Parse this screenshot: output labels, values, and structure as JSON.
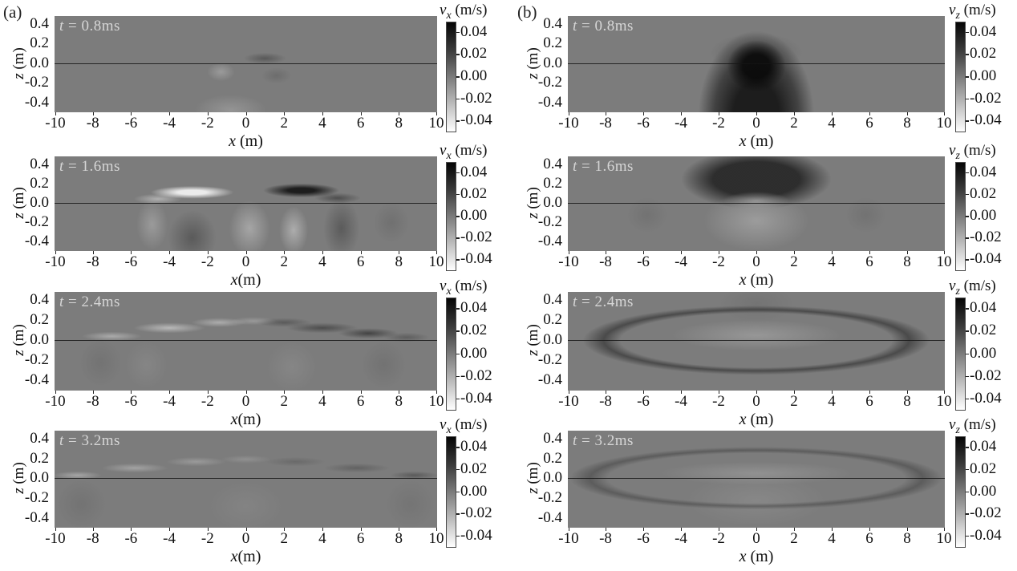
{
  "figure": {
    "panel_a_letter": "(a)",
    "panel_b_letter": "(b)",
    "background_gray": "#7c7c7c",
    "time_label_color": "#d6d6d6"
  },
  "axes": {
    "z_var": "z",
    "z_unit": " (m)",
    "z_ticks": [
      "0.4",
      "0.2",
      "0.0",
      "-0.2",
      "-0.4"
    ],
    "x_ticks": [
      "-10",
      "-8",
      "-6",
      "-4",
      "-2",
      "0",
      "2",
      "4",
      "6",
      "8",
      "10"
    ]
  },
  "colorbar": {
    "ticks": [
      "0.04",
      "0.02",
      "0.00",
      "-0.02",
      "-0.04"
    ]
  },
  "panels": [
    {
      "id": "a1",
      "t_var": "t",
      "t_rest": " = 0.8ms",
      "x_var": "x",
      "x_unit": " (m)",
      "cb_var": "v",
      "cb_sub": "x",
      "cb_unit": " (m/s)"
    },
    {
      "id": "a2",
      "t_var": "t",
      "t_rest": " = 1.6ms",
      "x_var": "x",
      "x_unit": "(m)",
      "cb_var": "v",
      "cb_sub": "x",
      "cb_unit": " (m/s)"
    },
    {
      "id": "a3",
      "t_var": "t",
      "t_rest": " = 2.4ms",
      "x_var": "x",
      "x_unit": "(m)",
      "cb_var": "v",
      "cb_sub": "x",
      "cb_unit": " (m/s)"
    },
    {
      "id": "a4",
      "t_var": "t",
      "t_rest": " = 3.2ms",
      "x_var": "x",
      "x_unit": "(m)",
      "cb_var": "v",
      "cb_sub": "x",
      "cb_unit": " (m/s)"
    },
    {
      "id": "b1",
      "t_var": "t",
      "t_rest": " = 0.8ms",
      "x_var": "x",
      "x_unit": " (m)",
      "cb_var": "v",
      "cb_sub": "z",
      "cb_unit": " (m/s)"
    },
    {
      "id": "b2",
      "t_var": "t",
      "t_rest": " = 1.6ms",
      "x_var": "x",
      "x_unit": " (m)",
      "cb_var": "v",
      "cb_sub": "z",
      "cb_unit": " (m/s)"
    },
    {
      "id": "b3",
      "t_var": "t",
      "t_rest": " = 2.4ms",
      "x_var": "x",
      "x_unit": " (m)",
      "cb_var": "v",
      "cb_sub": "z",
      "cb_unit": " (m/s)"
    },
    {
      "id": "b4",
      "t_var": "t",
      "t_rest": " = 3.2ms",
      "x_var": "x",
      "x_unit": " (m)",
      "cb_var": "v",
      "cb_sub": "z",
      "cb_unit": " (m/s)"
    }
  ],
  "chart_data": {
    "type": "heatmap",
    "layout": "2 columns x 4 rows of grayscale wavefield snapshots; column (a) shows v_x, column (b) shows v_z",
    "x_axis": {
      "label": "x (m)",
      "range": [
        -10,
        10
      ],
      "ticks": [
        -10,
        -8,
        -6,
        -4,
        -2,
        0,
        2,
        4,
        6,
        8,
        10
      ]
    },
    "z_axis": {
      "label": "z (m)",
      "range": [
        0.45,
        -0.5
      ],
      "ticks": [
        0.4,
        0.2,
        0.0,
        -0.2,
        -0.4
      ]
    },
    "color_scale": {
      "unit": "m/s",
      "min": -0.04,
      "max": 0.04,
      "ticks": [
        0.04,
        0.02,
        0.0,
        -0.02,
        -0.04
      ],
      "colormap": "gray: black = +0.04, mid-gray = 0.00, white = -0.04"
    },
    "surface_interface_z": 0.0,
    "snapshots": [
      {
        "panel": "a",
        "component": "v_x",
        "time_ms": 0.8,
        "features": "nearly uniform field; weak dark wisp just above the interface near x=1 and faint light patch below the interface near x=-1"
      },
      {
        "panel": "a",
        "component": "v_x",
        "time_ms": 1.6,
        "features": "white (negative) lobe near x=-3 and black (positive) lobe near x=+3 just above the interface; alternating light/dark columns below the interface between x=-6 and x=+6"
      },
      {
        "panel": "a",
        "component": "v_x",
        "time_ms": 2.4,
        "features": "thin arched wavefront from x=-9 to x=+9 peaking near z=0.25; left limb white, right limb black; faint vertical banding below the interface"
      },
      {
        "panel": "a",
        "component": "v_x",
        "time_ms": 3.2,
        "features": "fainter full-width arched wavefront peaking near z=0.3; light left limb, dark right limb; weak banding below"
      },
      {
        "panel": "b",
        "component": "v_z",
        "time_ms": 0.8,
        "features": "strong black plume centered at x=0 extending from the interface to the bottom, with a dark dome just above the interface"
      },
      {
        "panel": "b",
        "component": "v_z",
        "time_ms": 1.6,
        "features": "dark dome above the interface spanning x=-5..5 reaching the frame top; light column below the interface centered at x=0"
      },
      {
        "panel": "b",
        "component": "v_z",
        "time_ms": 2.4,
        "features": "dark arch spanning x=-8..8 peaking near z=0.3 with a lighter interior near the surface; faint structure below"
      },
      {
        "panel": "b",
        "component": "v_z",
        "time_ms": 3.2,
        "features": "very faint broad arch with dark limbs near the frame edges and a light region near the surface center"
      }
    ]
  }
}
